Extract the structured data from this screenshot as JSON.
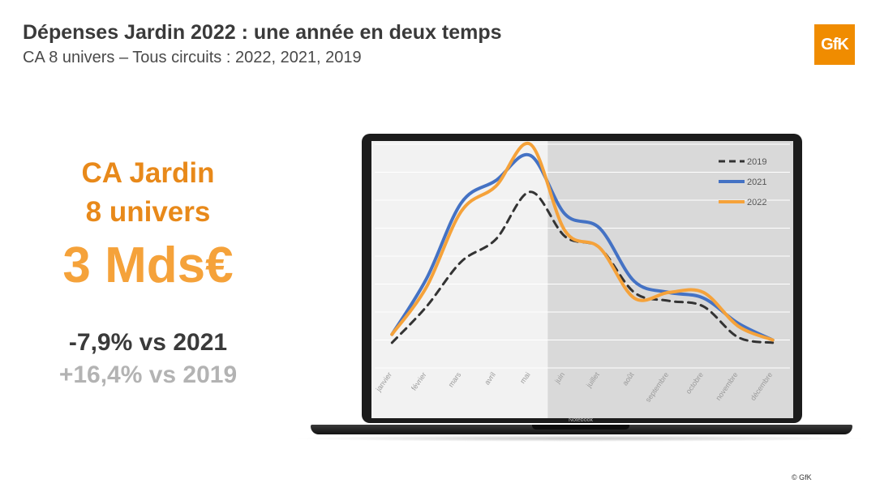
{
  "header": {
    "title": "Dépenses Jardin 2022 : une année en deux temps",
    "subtitle": "CA 8 univers – Tous circuits : 2022, 2021, 2019",
    "logo_text": "GfK"
  },
  "kpi": {
    "line1": "CA Jardin",
    "line2": "8 univers",
    "value": "3 Mds€",
    "vs2021": "-7,9% vs 2021",
    "vs2019": "+16,4% vs 2019"
  },
  "laptop": {
    "label": "Notebook"
  },
  "footer": {
    "copyright": "© GfK"
  },
  "colors": {
    "accent": "#e8891a",
    "series_2019": "#333333",
    "series_2021": "#4472c4",
    "series_2022": "#f5a23a",
    "bg_first_half": "#f2f2f2",
    "bg_second_half": "#d9d9d9"
  },
  "chart_data": {
    "type": "line",
    "title": "",
    "xlabel": "",
    "ylabel": "",
    "categories": [
      "janvier",
      "février",
      "mars",
      "avril",
      "mai",
      "juin",
      "juillet",
      "août",
      "septembre",
      "octobre",
      "novembre",
      "décembre"
    ],
    "ylim": [
      0,
      8
    ],
    "grid": true,
    "legend_position": "top-right",
    "shaded_regions": [
      {
        "from": "janvier",
        "to": "mai"
      },
      {
        "from": "juin",
        "to": "décembre"
      }
    ],
    "series": [
      {
        "name": "2019",
        "style": "dashed",
        "values": [
          0.9,
          2.2,
          3.8,
          4.6,
          6.3,
          4.7,
          4.3,
          2.7,
          2.4,
          2.2,
          1.1,
          0.9
        ]
      },
      {
        "name": "2021",
        "style": "solid",
        "values": [
          1.2,
          3.2,
          5.9,
          6.7,
          7.6,
          5.5,
          5.0,
          3.1,
          2.7,
          2.5,
          1.6,
          1.0
        ]
      },
      {
        "name": "2022",
        "style": "solid",
        "values": [
          1.2,
          2.9,
          5.6,
          6.5,
          8.0,
          4.9,
          4.3,
          2.5,
          2.7,
          2.7,
          1.5,
          1.0
        ]
      }
    ]
  }
}
